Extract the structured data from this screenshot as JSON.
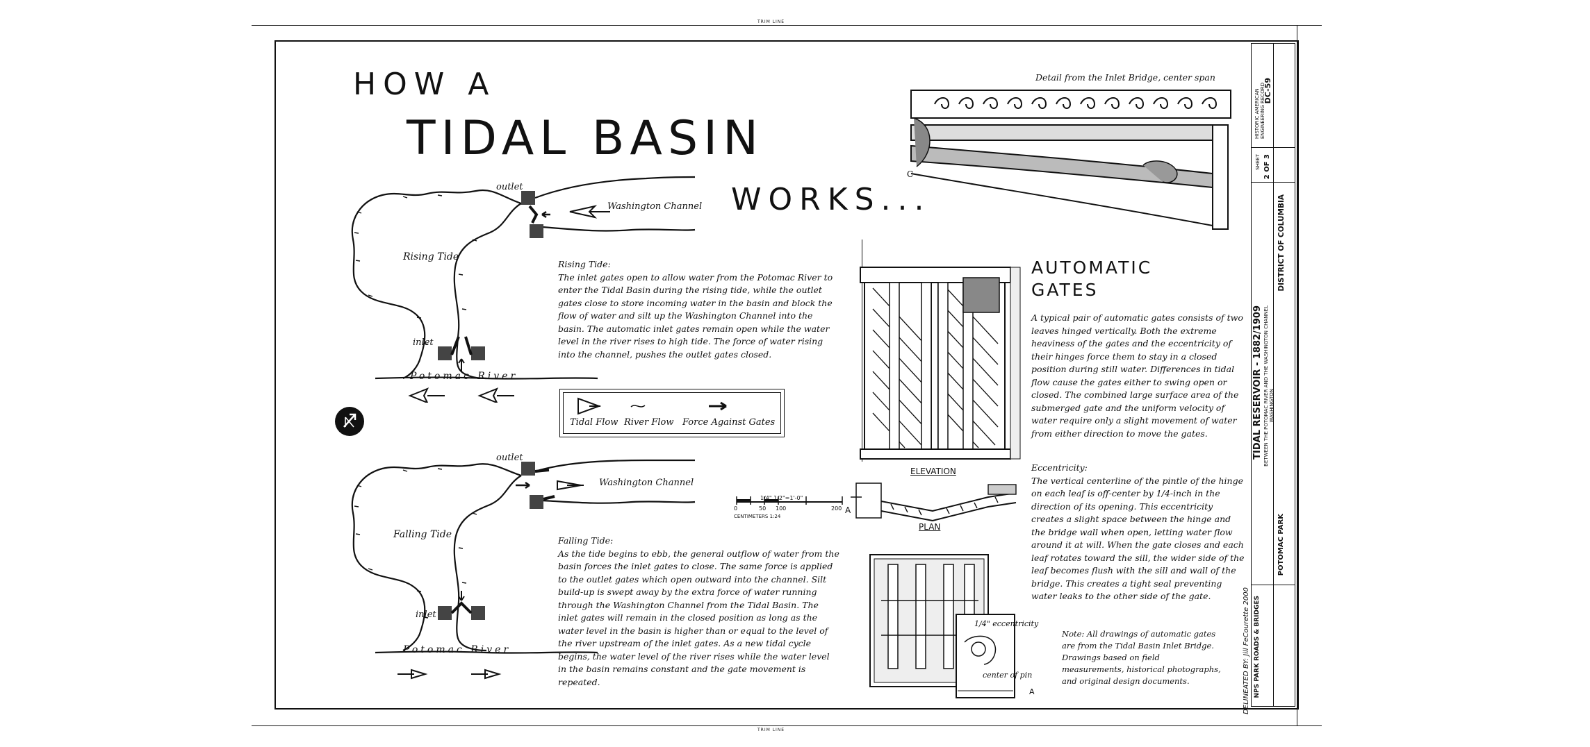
{
  "trim_line": "TRIM LINE",
  "title": {
    "line1": "HOW A",
    "line2": "TIDAL BASIN",
    "line3": "WORKS..."
  },
  "rising": {
    "outlet_label": "outlet",
    "channel_label": "Washington Channel",
    "tide_label": "Rising Tide",
    "inlet_label": "inlet",
    "river_label": "Potomac River",
    "heading": "Rising Tide:",
    "text": "The inlet gates open to allow water from the Potomac River to enter the Tidal Basin during the rising tide, while the outlet gates close to store incoming water in the basin and block the flow of water and silt up the Washington Channel into the basin.  The automatic inlet gates remain open while the water level in the river rises to high tide.  The force of water rising into the channel, pushes the outlet gates closed."
  },
  "legend": {
    "tidal_flow": "Tidal Flow",
    "river_flow": "River Flow",
    "force": "Force Against Gates"
  },
  "falling": {
    "outlet_label": "outlet",
    "channel_label": "Washington Channel",
    "tide_label": "Falling Tide",
    "inlet_label": "inlet",
    "river_label": "Potomac River",
    "heading": "Falling Tide:",
    "text": "As the tide begins to ebb, the general outflow of water from the basin forces the inlet gates to close.  The same force is applied to the outlet gates which open outward into the channel.  Silt build-up is swept away by the extra force of water running through the Washington Channel from the Tidal Basin.  The inlet gates will remain in the closed position as long as the water level in the basin is higher than or equal to the level of the river upstream of the inlet gates.  As a new tidal cycle begins, the water level of the river rises while the water level in the basin remains constant and the gate movement is repeated."
  },
  "detail_caption": "Detail from the Inlet Bridge, center span",
  "scale": {
    "labels": [
      "0",
      "50",
      "100",
      "200"
    ],
    "top": "1/4\" 1/2\"=1'-0\"",
    "bottom": "CENTIMETERS 1:24"
  },
  "elevation_label": "ELEVATION",
  "plan_label": "PLAN",
  "section_marker": "A",
  "eccentricity_label": "1/4\" eccentricity",
  "center_pin_label": "center of pin",
  "automatic": {
    "heading_line1": "AUTOMATIC",
    "heading_line2": "GATES",
    "text": "A typical pair of automatic gates consists of two leaves hinged vertically.  Both the extreme heaviness of the gates and the eccentricity of their hinges force them to stay in a closed position during still water.  Differences in tidal flow cause the gates either to swing open or closed.  The combined large surface area of the submerged gate and the uniform velocity of water require only a slight movement of water from either direction to move the gates."
  },
  "eccentricity": {
    "heading": "Eccentricity:",
    "text": "The vertical centerline of the pintle of the hinge on each leaf is off-center by 1/4-inch in the direction of its opening.  This eccentricity creates a slight space between the hinge and the bridge wall when open, letting water flow around it at will.  When the gate closes and each leaf rotates toward the sill, the wider side of the leaf becomes flush with the sill and wall of the bridge.  This creates a tight seal preventing water leaks to the other side of the gate."
  },
  "note": "Note:  All drawings of automatic gates are from the Tidal Basin Inlet Bridge.  Drawings based on field measurements, historical photographs, and original design documents.",
  "title_block": {
    "delineator": "DELINEATED BY: Jill FeCourette 2000",
    "agency": "NPS PARK ROADS & BRIDGES",
    "project": "TIDAL RESERVOIR - 1882/1909",
    "location_line": "BETWEEN THE POTOMAC RIVER AND THE WASHINGTON CHANNEL",
    "city": "WASHINGTON",
    "park": "POTOMAC PARK",
    "district": "DISTRICT OF COLUMBIA",
    "survey": "HISTORIC AMERICAN ENGINEERING RECORD",
    "survey_no": "DC-59",
    "sheet_label": "SHEET",
    "sheet_no": "2 OF 3"
  }
}
